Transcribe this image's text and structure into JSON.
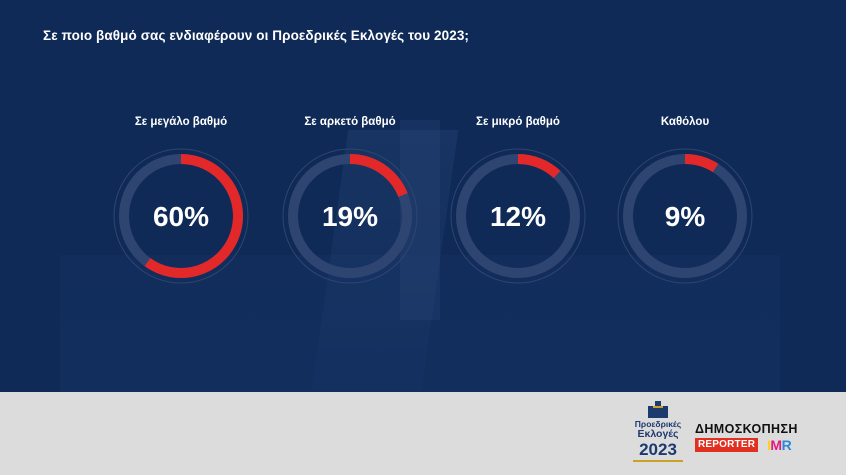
{
  "title": "Σε ποιο βαθμό σας ενδιαφέρουν οι Προεδρικές Εκλογές του 2023;",
  "colors": {
    "background": "#0f2a57",
    "arc": "#e3282a",
    "track": "#2f4571",
    "text": "#ffffff",
    "footer": "#dcdcdc"
  },
  "chart_data": {
    "type": "donut",
    "title": "Σε ποιο βαθμό σας ενδιαφέρουν οι Προεδρικές Εκλογές του 2023;",
    "categories": [
      "Σε μεγάλο βαθμό",
      "Σε αρκετό βαθμό",
      "Σε μικρό βαθμό",
      "Καθόλου"
    ],
    "values": [
      60,
      19,
      12,
      9
    ],
    "value_labels": [
      "60%",
      "19%",
      "12%",
      "9%"
    ],
    "unit": "%"
  },
  "footer": {
    "elections_logo": {
      "line1": "Προεδρικές",
      "line2": "Εκλογές",
      "year": "2023"
    },
    "poll_title": "ΔΗΜΟΣΚΟΠΗΣΗ",
    "reporter": "REPORTER",
    "imr": {
      "i": "I",
      "m": "M",
      "r": "R"
    }
  }
}
